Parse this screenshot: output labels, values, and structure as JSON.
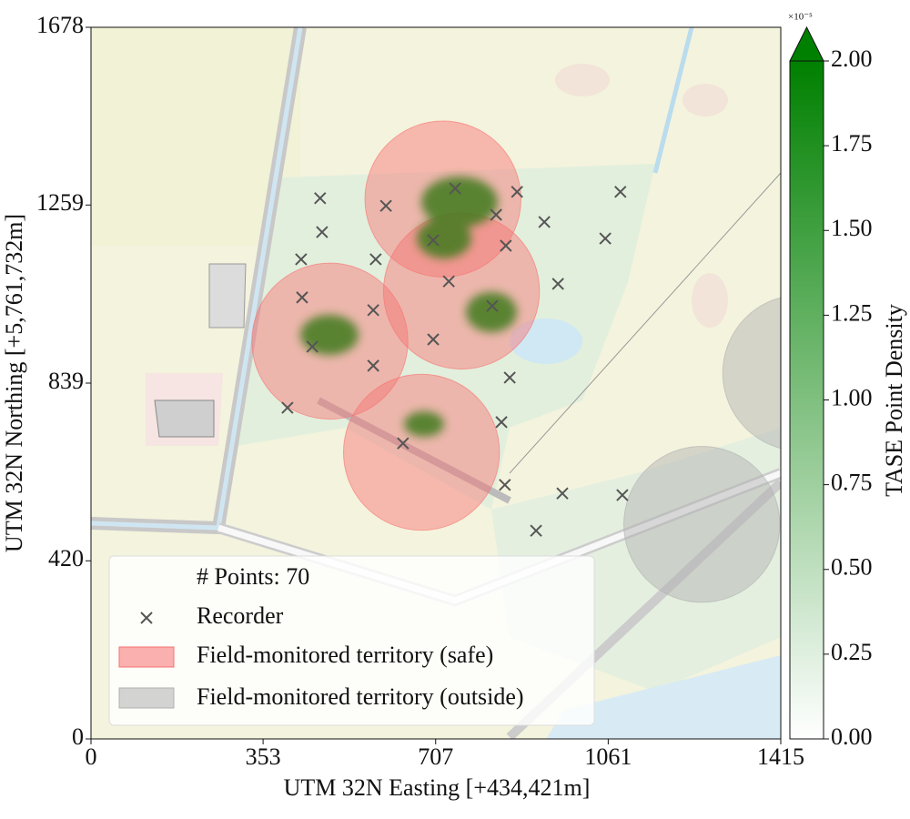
{
  "chart_data": {
    "type": "scatter",
    "xlabel": "UTM 32N Easting [+434,421m]",
    "ylabel": "UTM 32N Northing [+5,761,732m]",
    "xlim": [
      0,
      1415
    ],
    "ylim": [
      0,
      1678
    ],
    "xticks": [
      0,
      353,
      707,
      1061,
      1415
    ],
    "yticks": [
      0,
      420,
      839,
      1259,
      1678
    ],
    "legend_title": "# Points: 70",
    "recorders": {
      "name": "Recorder",
      "color": "#555555",
      "x": [
        470,
        605,
        474,
        431,
        584,
        747,
        874,
        831,
        930,
        702,
        851,
        1086,
        1055,
        734,
        958,
        433,
        579,
        823,
        454,
        702,
        579,
        859,
        403,
        842,
        640,
        849,
        967,
        1090,
        913
      ],
      "y": [
        1275,
        1257,
        1195,
        1131,
        1131,
        1298,
        1290,
        1236,
        1219,
        1176,
        1163,
        1290,
        1180,
        1079,
        1073,
        1041,
        1011,
        1021,
        925,
        942,
        880,
        852,
        781,
        747,
        697,
        599,
        579,
        575,
        491
      ]
    },
    "territories": [
      {
        "name": "Field-monitored territory (safe)",
        "color": "#f87171",
        "x": [
          722,
          760,
          490,
          678
        ],
        "y": [
          1273,
          1056,
          938,
          676
        ],
        "radius": 160
      },
      {
        "name": "Field-monitored territory (outside)",
        "color": "#b0b0b0",
        "x": [
          1253,
          1456
        ],
        "y": [
          506,
          863
        ],
        "radius": 160
      }
    ],
    "colorbar": {
      "label": "TASE Point Density",
      "multiplier": "×10⁻⁵",
      "color": "#008000",
      "lim": [
        0,
        2
      ],
      "ticks": [
        {
          "value": 0,
          "label": "0.00"
        },
        {
          "value": 0.25,
          "label": "0.25"
        },
        {
          "value": 0.5,
          "label": "0.50"
        },
        {
          "value": 0.75,
          "label": "0.75"
        },
        {
          "value": 1,
          "label": "1.00"
        },
        {
          "value": 1.25,
          "label": "1.25"
        },
        {
          "value": 1.5,
          "label": "1.50"
        },
        {
          "value": 1.75,
          "label": "1.75"
        },
        {
          "value": 2,
          "label": "2.00"
        }
      ]
    }
  }
}
